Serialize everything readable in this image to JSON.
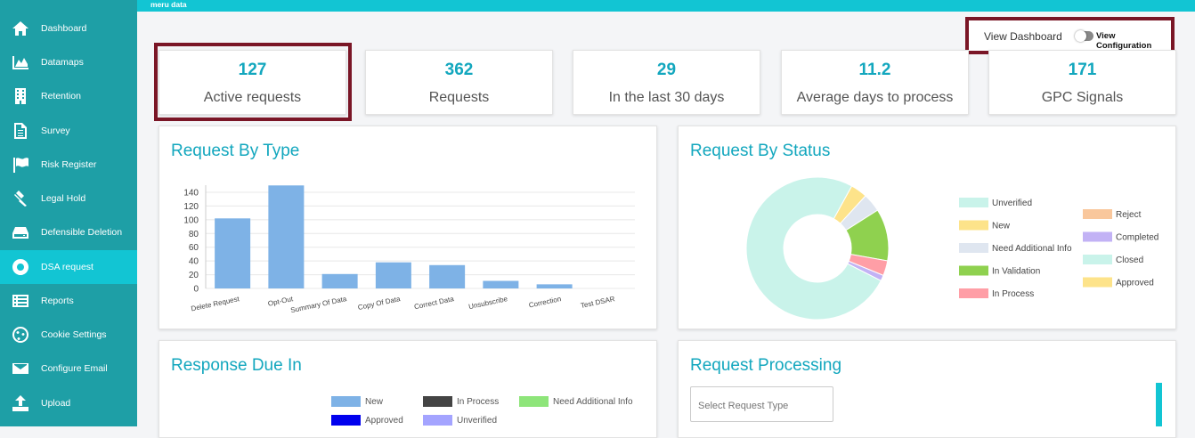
{
  "app": {
    "title": "meru data"
  },
  "sidebar": {
    "items": [
      {
        "label": "Dashboard",
        "icon": "home-icon"
      },
      {
        "label": "Datamaps",
        "icon": "area-chart-icon"
      },
      {
        "label": "Retention",
        "icon": "building-icon"
      },
      {
        "label": "Survey",
        "icon": "document-icon"
      },
      {
        "label": "Risk Register",
        "icon": "flag-icon"
      },
      {
        "label": "Legal Hold",
        "icon": "gavel-icon"
      },
      {
        "label": "Defensible Deletion",
        "icon": "hdd-icon"
      },
      {
        "label": "DSA request",
        "icon": "life-ring-icon",
        "active": true
      },
      {
        "label": "Reports",
        "icon": "list-icon"
      },
      {
        "label": "Cookie Settings",
        "icon": "cookie-icon"
      },
      {
        "label": "Configure Email",
        "icon": "envelope-icon"
      },
      {
        "label": "Upload",
        "icon": "upload-icon"
      }
    ],
    "color": "#1e9fa6",
    "active_color": "#12c5d3"
  },
  "toggle": {
    "left_label": "View Dashboard",
    "right_label": "View Configuration",
    "on": false
  },
  "stats": [
    {
      "value": "127",
      "label": "Active requests"
    },
    {
      "value": "362",
      "label": "Requests"
    },
    {
      "value": "29",
      "label": "In the last 30 days"
    },
    {
      "value": "11.2",
      "label": "Average days to process"
    },
    {
      "value": "171",
      "label": "GPC Signals"
    }
  ],
  "panels": {
    "by_type": {
      "title": "Request By Type"
    },
    "by_status": {
      "title": "Request By Status"
    },
    "response_due": {
      "title": "Response Due In"
    },
    "processing": {
      "title": "Request Processing",
      "select_placeholder": "Select Request Type"
    }
  },
  "chart_data": [
    {
      "type": "bar",
      "title": "Request By Type",
      "categories": [
        "Delete Request",
        "Opt-Out",
        "Summary Of Data",
        "Copy Of Data",
        "Correct Data",
        "Unsubscribe",
        "Correction",
        "Test DSAR"
      ],
      "values": [
        102,
        150,
        21,
        38,
        34,
        11,
        6,
        0
      ],
      "y_ticks": [
        "0",
        "20",
        "40",
        "60",
        "80",
        "100",
        "120",
        "140"
      ],
      "ylim": [
        0,
        150
      ],
      "color": "#7eb2e6",
      "grid": true
    },
    {
      "type": "pie",
      "title": "Request By Status",
      "donut": true,
      "legend_position": "right",
      "slices": [
        {
          "name": "Unverified",
          "value": 0.755,
          "color": "#c9f3ea"
        },
        {
          "name": "New",
          "value": 0.038,
          "color": "#fde38a"
        },
        {
          "name": "Need Additional Info",
          "value": 0.042,
          "color": "#dfe6f0"
        },
        {
          "name": "In Validation",
          "value": 0.118,
          "color": "#8fd14f"
        },
        {
          "name": "In Process",
          "value": 0.034,
          "color": "#ff9ea6"
        },
        {
          "name": "Completed",
          "value": 0.013,
          "color": "#c2b2f5"
        },
        {
          "name": "Reject",
          "value": 0.0,
          "color": "#f9c79c"
        },
        {
          "name": "Closed",
          "value": 0.0,
          "color": "#c9f3ea"
        },
        {
          "name": "Approved",
          "value": 0.0,
          "color": "#fde38a"
        }
      ]
    }
  ],
  "response_due_legend": [
    {
      "name": "New",
      "color": "#7eb2e6"
    },
    {
      "name": "In Process",
      "color": "#444444"
    },
    {
      "name": "Need Additional Info",
      "color": "#8ee57a"
    },
    {
      "name": "Approved",
      "color": "#0000ee"
    },
    {
      "name": "Unverified",
      "color": "#a4a4ff"
    }
  ]
}
